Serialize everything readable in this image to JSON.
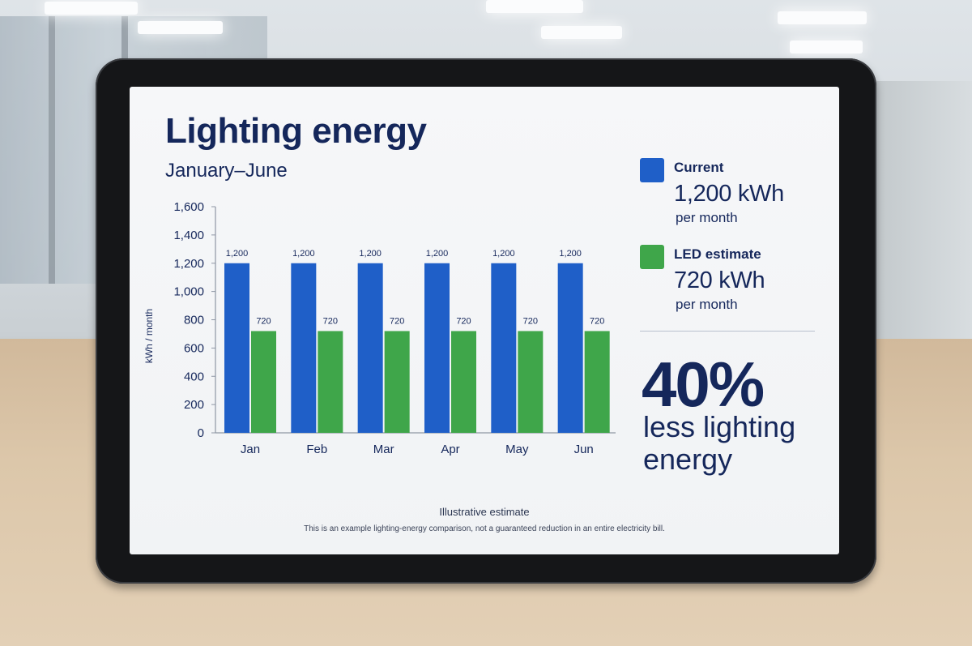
{
  "title": "Lighting energy",
  "subtitle": "January–June",
  "colors": {
    "current": "#1f5fc8",
    "led": "#3fa64a",
    "text": "#15275b"
  },
  "chart_data": {
    "type": "bar",
    "categories": [
      "Jan",
      "Feb",
      "Mar",
      "Apr",
      "May",
      "Jun"
    ],
    "series": [
      {
        "name": "Current",
        "values": [
          1200,
          1200,
          1200,
          1200,
          1200,
          1200
        ],
        "labels": [
          "1,200",
          "1,200",
          "1,200",
          "1,200",
          "1,200",
          "1,200"
        ]
      },
      {
        "name": "LED estimate",
        "values": [
          720,
          720,
          720,
          720,
          720,
          720
        ],
        "labels": [
          "720",
          "720",
          "720",
          "720",
          "720",
          "720"
        ]
      }
    ],
    "ylabel": "kWh / month",
    "ylim": [
      0,
      1600
    ],
    "yticks": [
      0,
      200,
      400,
      600,
      800,
      1000,
      1200,
      1400,
      1600
    ],
    "ytick_labels": [
      "0",
      "200",
      "400",
      "600",
      "800",
      "1,000",
      "1,200",
      "1,400",
      "1,600"
    ],
    "grid": false,
    "legend_position": "right"
  },
  "legend": {
    "current": {
      "name": "Current",
      "value": "1,200 kWh",
      "unit": "per month"
    },
    "led": {
      "name": "LED estimate",
      "value": "720 kWh",
      "unit": "per month"
    }
  },
  "summary": {
    "percent": "40%",
    "caption": "less lighting energy"
  },
  "footer": {
    "title": "Illustrative estimate",
    "note": "This is an example lighting-energy comparison, not a guaranteed reduction in an entire electricity bill."
  }
}
